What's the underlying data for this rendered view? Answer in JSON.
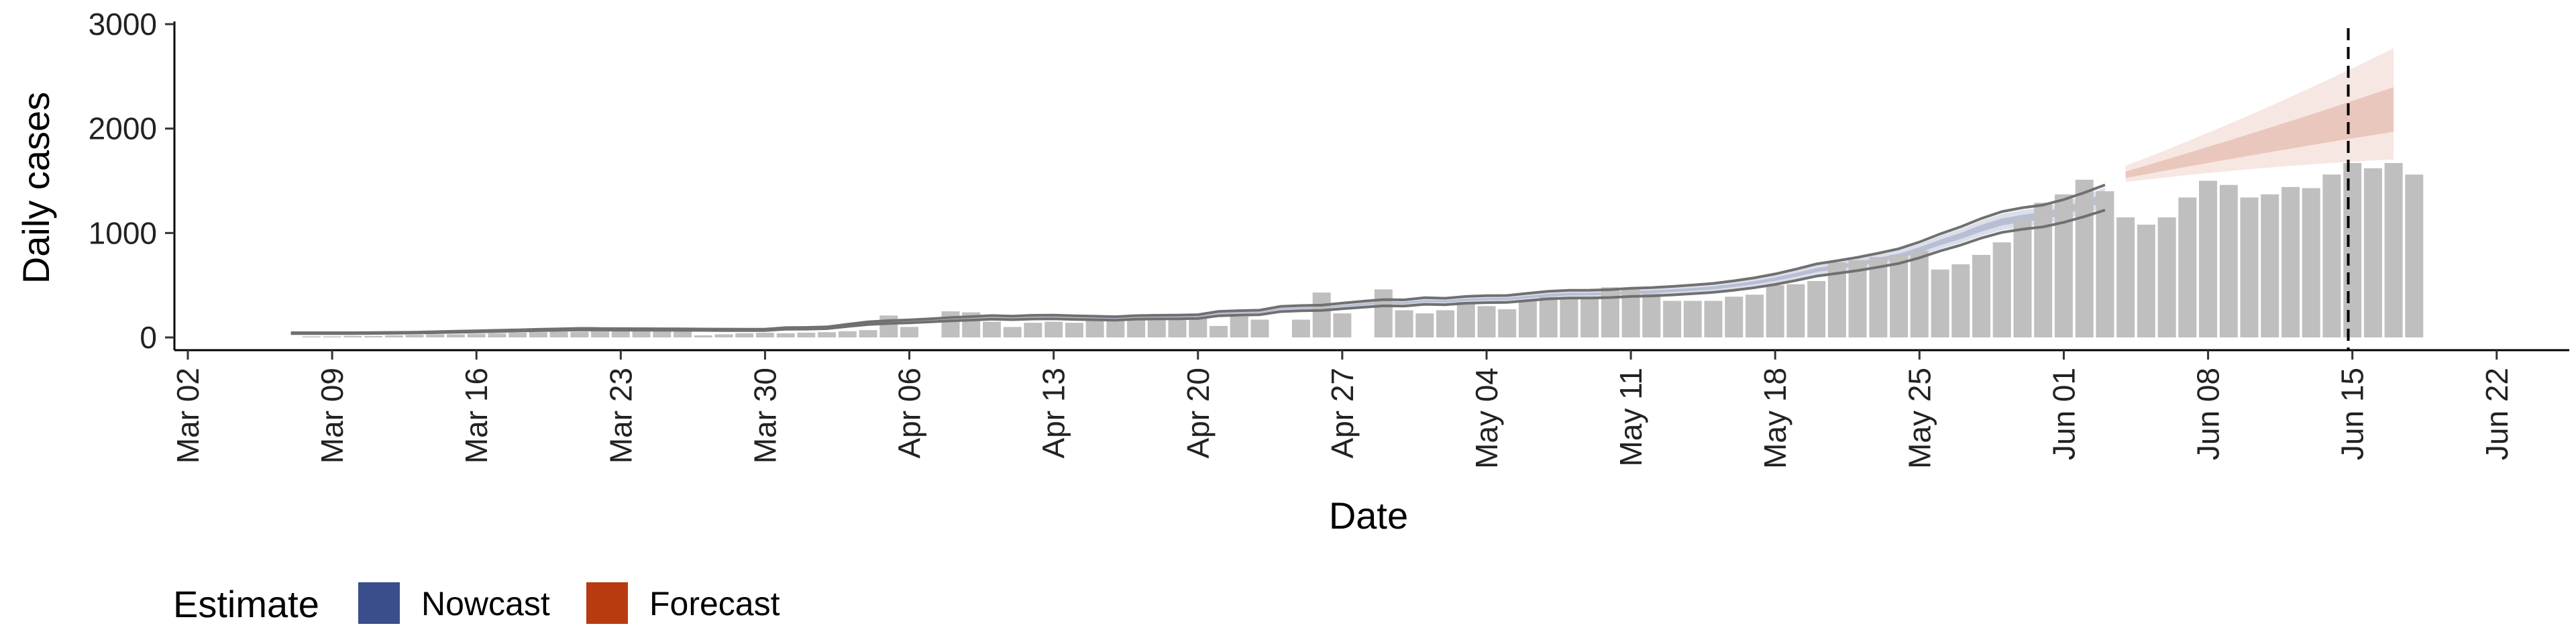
{
  "chart_data": {
    "type": "bar",
    "title": "",
    "xlabel": "Date",
    "ylabel": "Daily cases",
    "ylim": [
      0,
      3000
    ],
    "y_ticks": [
      "0",
      "1000",
      "2000",
      "3000"
    ],
    "x_ticks": [
      "Mar 02",
      "Mar 09",
      "Mar 16",
      "Mar 23",
      "Mar 30",
      "Apr 06",
      "Apr 13",
      "Apr 20",
      "Apr 27",
      "May 04",
      "May 11",
      "May 18",
      "May 25",
      "Jun 01",
      "Jun 08",
      "Jun 15",
      "Jun 22"
    ],
    "x_range_days": [
      -1,
      110
    ],
    "first_bar_day": 6,
    "cases": [
      10,
      10,
      15,
      15,
      20,
      25,
      30,
      30,
      35,
      40,
      45,
      50,
      55,
      55,
      60,
      65,
      70,
      70,
      80,
      20,
      30,
      40,
      45,
      40,
      45,
      50,
      60,
      70,
      210,
      100,
      0,
      250,
      240,
      150,
      100,
      140,
      150,
      140,
      160,
      160,
      170,
      180,
      190,
      200,
      110,
      200,
      170,
      0,
      170,
      430,
      230,
      0,
      460,
      260,
      230,
      260,
      340,
      300,
      270,
      350,
      390,
      380,
      390,
      480,
      460,
      420,
      350,
      350,
      350,
      390,
      410,
      500,
      510,
      540,
      720,
      740,
      770,
      790,
      830,
      650,
      700,
      790,
      910,
      1130,
      1290,
      1370,
      1510,
      1400,
      1150,
      1080,
      1150,
      1340,
      1500,
      1460,
      1340,
      1370,
      1440,
      1430,
      1560,
      1670,
      1620,
      1670,
      1560
    ],
    "series": [
      {
        "name": "Nowcast",
        "day_range": [
          5,
          93
        ],
        "start_value": 20,
        "peak_value": 1560
      },
      {
        "name": "Forecast",
        "day_range": [
          94,
          107
        ],
        "start_value": 1550,
        "end_value": 2130
      }
    ],
    "vline_day": 104.8,
    "legend": {
      "title": "Estimate",
      "position": "bottom-left"
    },
    "colors": {
      "bars": "#bfbfbf",
      "nowcast": "#3a4e8c",
      "forecast": "#b83a10",
      "outline": "#707070",
      "axis": "#000000"
    }
  }
}
